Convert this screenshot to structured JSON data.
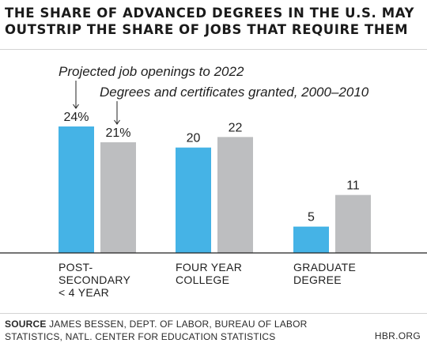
{
  "title_lines": [
    "THE SHARE OF ADVANCED DEGREES IN THE U.S. MAY",
    "OUTSTRIP THE SHARE OF JOBS THAT REQUIRE THEM"
  ],
  "source": {
    "label": "SOURCE",
    "lines": [
      "JAMES BESSEN, DEPT. OF LABOR, BUREAU OF LABOR",
      "STATISTICS, NATL. CENTER FOR EDUCATION STATISTICS"
    ]
  },
  "credit": "HBR.ORG",
  "colors": {
    "job_openings": "#45b3e6",
    "degrees": "#bdbec0",
    "axis": "#222222",
    "text": "#1f1f1f"
  },
  "chart_data": {
    "type": "bar",
    "categories": [
      [
        "POST-",
        "SECONDARY",
        "< 4 YEAR"
      ],
      [
        "FOUR YEAR",
        "COLLEGE"
      ],
      [
        "GRADUATE",
        "DEGREE"
      ]
    ],
    "series": [
      {
        "name": "Projected job openings to 2022",
        "values": [
          24,
          20,
          5
        ],
        "labels": [
          "24%",
          "20",
          "5"
        ],
        "color": "#45b3e6"
      },
      {
        "name": "Degrees and certificates granted, 2000–2010",
        "values": [
          21,
          22,
          11
        ],
        "labels": [
          "21%",
          "22",
          "11"
        ],
        "color": "#bdbec0"
      }
    ],
    "ylim": [
      0,
      30
    ],
    "grid": false,
    "legend": "annotations with arrows above first group"
  }
}
